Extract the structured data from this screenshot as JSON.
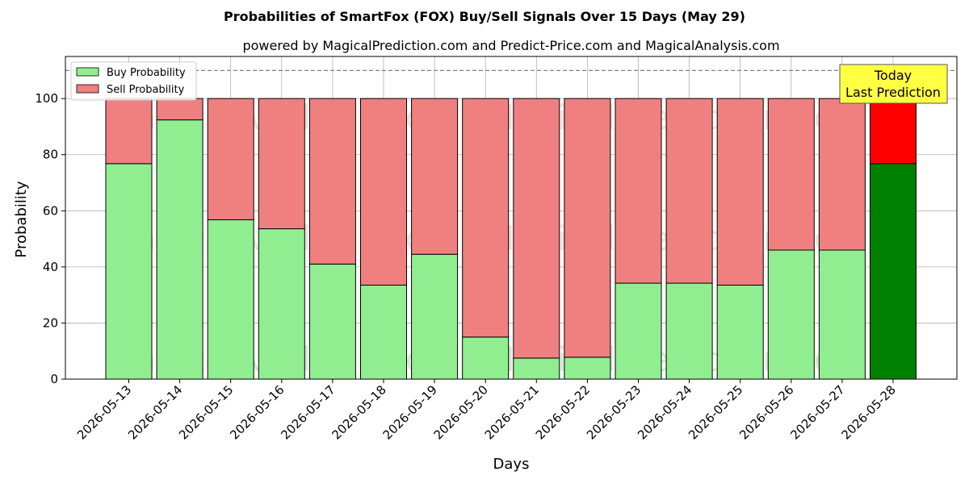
{
  "chart_data": {
    "type": "bar",
    "stacked": true,
    "title": "Probabilities of SmartFox (FOX) Buy/Sell Signals Over 15 Days (May 29)",
    "subtitle": "powered by MagicalPrediction.com and Predict-Price.com and MagicalAnalysis.com",
    "xlabel": "Days",
    "ylabel": "Probability",
    "ylim": [
      0,
      115
    ],
    "yticks": [
      0,
      20,
      40,
      60,
      80,
      100
    ],
    "reference_line": 110,
    "grid": true,
    "legend_position": "top-left",
    "categories": [
      "2026-05-13",
      "2026-05-14",
      "2026-05-15",
      "2026-05-16",
      "2026-05-17",
      "2026-05-18",
      "2026-05-19",
      "2026-05-20",
      "2026-05-21",
      "2026-05-22",
      "2026-05-23",
      "2026-05-24",
      "2026-05-25",
      "2026-05-26",
      "2026-05-27",
      "2026-05-28"
    ],
    "series": [
      {
        "name": "Buy Probability",
        "color": "#90ee90",
        "values": [
          76.8,
          92.4,
          56.8,
          53.6,
          41.0,
          33.5,
          44.5,
          15.0,
          7.5,
          7.8,
          34.2,
          34.2,
          33.5,
          46.0,
          46.0,
          76.8
        ]
      },
      {
        "name": "Sell Probability",
        "color": "#f08080",
        "values": [
          23.2,
          7.6,
          43.2,
          46.4,
          59.0,
          66.5,
          55.5,
          85.0,
          92.5,
          92.2,
          65.8,
          65.8,
          66.5,
          54.0,
          54.0,
          23.2
        ]
      }
    ],
    "highlight": {
      "index": 15,
      "buy_color": "#008000",
      "sell_color": "#ff0000"
    },
    "annotation": {
      "line1": "Today",
      "line2": "Last Prediction",
      "background": "#ffff44"
    },
    "watermarks": [
      "MagicalAnalysis.com",
      "MagicalPrediction.com"
    ]
  }
}
